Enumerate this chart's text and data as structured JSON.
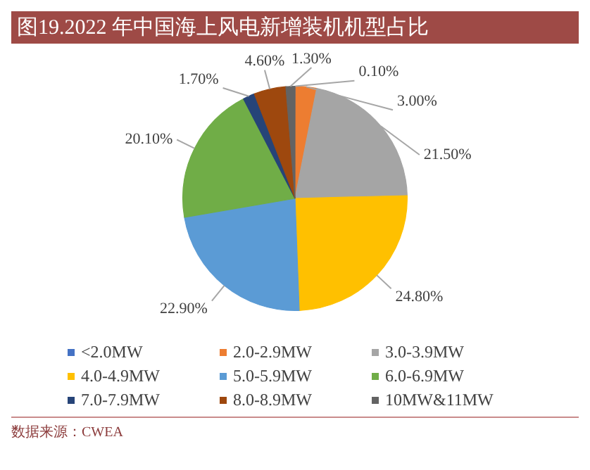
{
  "chart_data": {
    "type": "pie",
    "title": "图19.2022 年中国海上风电新增装机机型占比",
    "categories": [
      "<2.0MW",
      "2.0-2.9MW",
      "3.0-3.9MW",
      "4.0-4.9MW",
      "5.0-5.9MW",
      "6.0-6.9MW",
      "7.0-7.9MW",
      "8.0-8.9MW",
      "10MW&11MW"
    ],
    "values": [
      0.1,
      3.0,
      21.5,
      24.8,
      22.9,
      20.1,
      1.7,
      4.6,
      1.3
    ],
    "value_labels": [
      "0.10%",
      "3.00%",
      "21.50%",
      "24.80%",
      "22.90%",
      "20.10%",
      "1.70%",
      "4.60%",
      "1.30%"
    ],
    "colors": [
      "#4472c4",
      "#ed7d31",
      "#a5a5a5",
      "#ffc000",
      "#5b9bd5",
      "#70ad47",
      "#264478",
      "#9e480e",
      "#636363"
    ],
    "legend": "bottom",
    "annotations": [
      "数据来源：CWEA"
    ]
  }
}
